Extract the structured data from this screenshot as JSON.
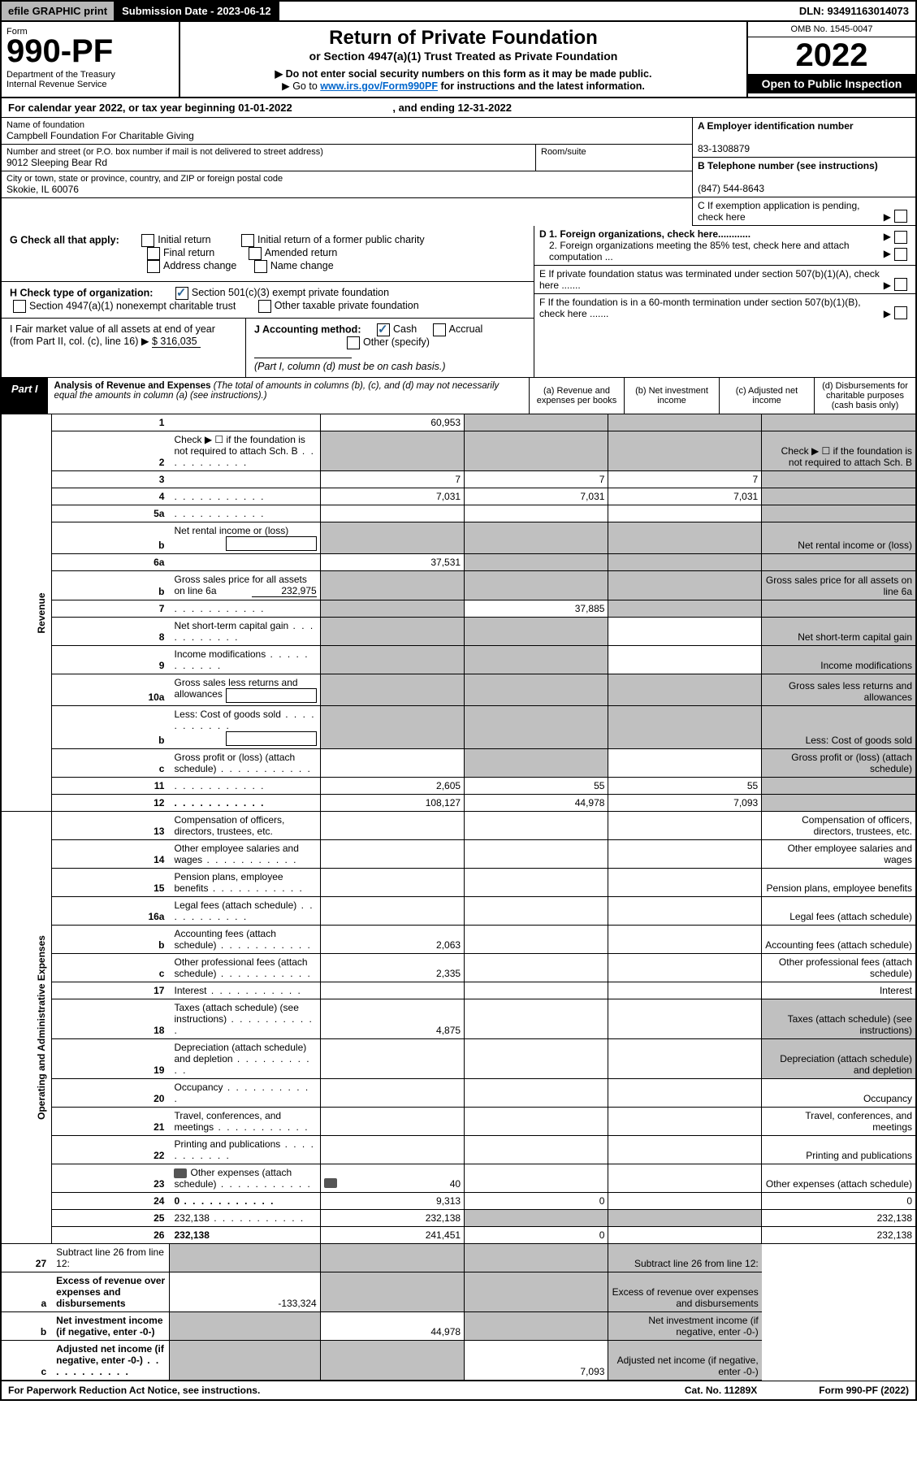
{
  "topbar": {
    "efile": "efile GRAPHIC print",
    "submission_label": "Submission Date - 2023-06-12",
    "dln": "DLN: 93491163014073"
  },
  "header": {
    "form_word": "Form",
    "form_no": "990-PF",
    "dept": "Department of the Treasury",
    "irs": "Internal Revenue Service",
    "title": "Return of Private Foundation",
    "subtitle": "or Section 4947(a)(1) Trust Treated as Private Foundation",
    "instr1": "▶ Do not enter social security numbers on this form as it may be made public.",
    "instr2_pre": "▶ Go to ",
    "instr2_link": "www.irs.gov/Form990PF",
    "instr2_post": " for instructions and the latest information.",
    "omb": "OMB No. 1545-0047",
    "year": "2022",
    "open": "Open to Public Inspection"
  },
  "calyear": {
    "text_pre": "For calendar year 2022, or tax year beginning ",
    "begin": "01-01-2022",
    "mid": " , and ending ",
    "end": "12-31-2022"
  },
  "foundation": {
    "name_label": "Name of foundation",
    "name": "Campbell Foundation For Charitable Giving",
    "addr_label": "Number and street (or P.O. box number if mail is not delivered to street address)",
    "addr": "9012 Sleeping Bear Rd",
    "room_label": "Room/suite",
    "city_label": "City or town, state or province, country, and ZIP or foreign postal code",
    "city": "Skokie, IL  60076",
    "a_label": "A Employer identification number",
    "a_val": "83-1308879",
    "b_label": "B Telephone number (see instructions)",
    "b_val": "(847) 544-8643",
    "c_label": "C If exemption application is pending, check here",
    "d1": "D 1. Foreign organizations, check here............",
    "d2": "2. Foreign organizations meeting the 85% test, check here and attach computation ...",
    "e": "E  If private foundation status was terminated under section 507(b)(1)(A), check here .......",
    "f": "F  If the foundation is in a 60-month termination under section 507(b)(1)(B), check here ......."
  },
  "g": {
    "label": "G Check all that apply:",
    "o1": "Initial return",
    "o2": "Final return",
    "o3": "Address change",
    "o4": "Initial return of a former public charity",
    "o5": "Amended return",
    "o6": "Name change"
  },
  "h": {
    "label": "H Check type of organization:",
    "o1": "Section 501(c)(3) exempt private foundation",
    "o2": "Section 4947(a)(1) nonexempt charitable trust",
    "o3": "Other taxable private foundation"
  },
  "i": {
    "label_pre": "I Fair market value of all assets at end of year (from Part II, col. (c), line 16) ▶",
    "val": "$  316,035"
  },
  "j": {
    "label": "J Accounting method:",
    "cash": "Cash",
    "accrual": "Accrual",
    "other": "Other (specify)",
    "note": "(Part I, column (d) must be on cash basis.)"
  },
  "part1": {
    "tag": "Part I",
    "title": "Analysis of Revenue and Expenses",
    "note": " (The total of amounts in columns (b), (c), and (d) may not necessarily equal the amounts in column (a) (see instructions).)",
    "col_a": "(a)  Revenue and expenses per books",
    "col_b": "(b)  Net investment income",
    "col_c": "(c)  Adjusted net income",
    "col_d": "(d)  Disbursements for charitable purposes (cash basis only)"
  },
  "sections": {
    "revenue": "Revenue",
    "opex": "Operating and Administrative Expenses"
  },
  "rows": [
    {
      "n": "1",
      "d": "",
      "a": "60,953",
      "b": "",
      "c": "",
      "grey": [
        "b",
        "c",
        "d"
      ]
    },
    {
      "n": "2",
      "d": "Check ▶ ☐ if the foundation is not required to attach Sch. B",
      "dots": true,
      "grey": [
        "a",
        "b",
        "c",
        "d"
      ]
    },
    {
      "n": "3",
      "d": "",
      "a": "7",
      "b": "7",
      "c": "7",
      "grey": [
        "d"
      ]
    },
    {
      "n": "4",
      "d": "",
      "dots": true,
      "a": "7,031",
      "b": "7,031",
      "c": "7,031",
      "grey": [
        "d"
      ]
    },
    {
      "n": "5a",
      "d": "",
      "dots": true,
      "a": "",
      "b": "",
      "c": "",
      "grey": [
        "d"
      ]
    },
    {
      "n": "b",
      "d": "Net rental income or (loss)",
      "inline_box": true,
      "grey": [
        "a",
        "b",
        "c",
        "d"
      ]
    },
    {
      "n": "6a",
      "d": "",
      "a": "37,531",
      "b": "",
      "c": "",
      "grey": [
        "b",
        "c",
        "d"
      ]
    },
    {
      "n": "b",
      "d": "Gross sales price for all assets on line 6a",
      "inline_val": "232,975",
      "grey": [
        "a",
        "b",
        "c",
        "d"
      ]
    },
    {
      "n": "7",
      "d": "",
      "dots": true,
      "a": "",
      "b": "37,885",
      "c": "",
      "grey": [
        "a",
        "c",
        "d"
      ]
    },
    {
      "n": "8",
      "d": "Net short-term capital gain",
      "dots": true,
      "grey": [
        "a",
        "b",
        "d"
      ]
    },
    {
      "n": "9",
      "d": "Income modifications",
      "dots": true,
      "grey": [
        "a",
        "b",
        "d"
      ]
    },
    {
      "n": "10a",
      "d": "Gross sales less returns and allowances",
      "inline_box": true,
      "grey": [
        "a",
        "b",
        "c",
        "d"
      ]
    },
    {
      "n": "b",
      "d": "Less: Cost of goods sold",
      "dots": true,
      "inline_box": true,
      "grey": [
        "a",
        "b",
        "c",
        "d"
      ]
    },
    {
      "n": "c",
      "d": "Gross profit or (loss) (attach schedule)",
      "dots": true,
      "grey": [
        "b",
        "d"
      ]
    },
    {
      "n": "11",
      "d": "",
      "dots": true,
      "a": "2,605",
      "b": "55",
      "c": "55",
      "grey": [
        "d"
      ]
    },
    {
      "n": "12",
      "d": "",
      "dots": true,
      "bold": true,
      "a": "108,127",
      "b": "44,978",
      "c": "7,093",
      "grey": [
        "d"
      ]
    }
  ],
  "rows2": [
    {
      "n": "13",
      "d": "Compensation of officers, directors, trustees, etc."
    },
    {
      "n": "14",
      "d": "Other employee salaries and wages",
      "dots": true
    },
    {
      "n": "15",
      "d": "Pension plans, employee benefits",
      "dots": true
    },
    {
      "n": "16a",
      "d": "Legal fees (attach schedule)",
      "dots": true
    },
    {
      "n": "b",
      "d": "Accounting fees (attach schedule)",
      "dots": true,
      "a": "2,063"
    },
    {
      "n": "c",
      "d": "Other professional fees (attach schedule)",
      "dots": true,
      "a": "2,335"
    },
    {
      "n": "17",
      "d": "Interest",
      "dots": true
    },
    {
      "n": "18",
      "d": "Taxes (attach schedule) (see instructions)",
      "dots": true,
      "a": "4,875",
      "grey": [
        "d"
      ]
    },
    {
      "n": "19",
      "d": "Depreciation (attach schedule) and depletion",
      "dots": true,
      "grey": [
        "d"
      ]
    },
    {
      "n": "20",
      "d": "Occupancy",
      "dots": true
    },
    {
      "n": "21",
      "d": "Travel, conferences, and meetings",
      "dots": true
    },
    {
      "n": "22",
      "d": "Printing and publications",
      "dots": true
    },
    {
      "n": "23",
      "d": "Other expenses (attach schedule)",
      "dots": true,
      "icon": true,
      "a": "40"
    },
    {
      "n": "24",
      "d": "0",
      "dots": true,
      "bold": true,
      "a": "9,313",
      "b": "0",
      "c": ""
    },
    {
      "n": "25",
      "d": "232,138",
      "dots": true,
      "a": "232,138",
      "grey": [
        "b",
        "c"
      ]
    },
    {
      "n": "26",
      "d": "232,138",
      "bold": true,
      "a": "241,451",
      "b": "0",
      "c": ""
    }
  ],
  "rows3": [
    {
      "n": "27",
      "d": "Subtract line 26 from line 12:",
      "grey": [
        "a",
        "b",
        "c",
        "d"
      ]
    },
    {
      "n": "a",
      "d": "Excess of revenue over expenses and disbursements",
      "bold": true,
      "a": "-133,324",
      "grey": [
        "b",
        "c",
        "d"
      ]
    },
    {
      "n": "b",
      "d": "Net investment income (if negative, enter -0-)",
      "bold": true,
      "b": "44,978",
      "grey": [
        "a",
        "c",
        "d"
      ]
    },
    {
      "n": "c",
      "d": "Adjusted net income (if negative, enter -0-)",
      "dots": true,
      "bold": true,
      "c": "7,093",
      "grey": [
        "a",
        "b",
        "d"
      ]
    }
  ],
  "footer": {
    "left": "For Paperwork Reduction Act Notice, see instructions.",
    "mid": "Cat. No. 11289X",
    "right": "Form 990-PF (2022)"
  },
  "col_widths": {
    "a": 108,
    "b": 108,
    "c": 108,
    "d": 116
  }
}
